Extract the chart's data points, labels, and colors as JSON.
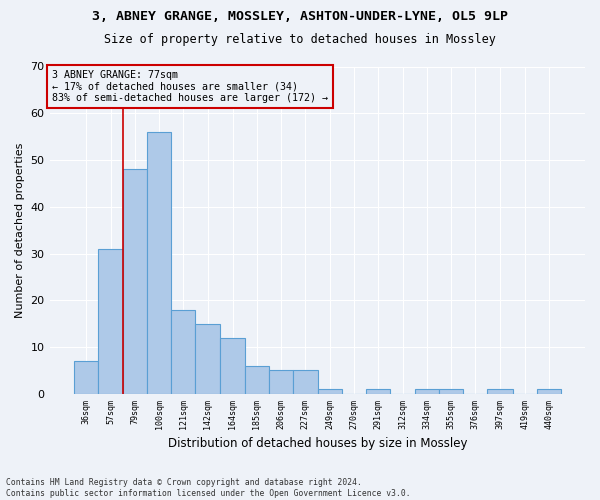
{
  "title_line1": "3, ABNEY GRANGE, MOSSLEY, ASHTON-UNDER-LYNE, OL5 9LP",
  "title_line2": "Size of property relative to detached houses in Mossley",
  "xlabel": "Distribution of detached houses by size in Mossley",
  "ylabel": "Number of detached properties",
  "footer_line1": "Contains HM Land Registry data © Crown copyright and database right 2024.",
  "footer_line2": "Contains public sector information licensed under the Open Government Licence v3.0.",
  "annotation_line1": "3 ABNEY GRANGE: 77sqm",
  "annotation_line2": "← 17% of detached houses are smaller (34)",
  "annotation_line3": "83% of semi-detached houses are larger (172) →",
  "property_line_x": 79,
  "bar_edges": [
    36,
    57,
    79,
    100,
    121,
    142,
    164,
    185,
    206,
    227,
    249,
    270,
    291,
    312,
    334,
    355,
    376,
    397,
    419,
    440,
    461
  ],
  "bar_heights": [
    7,
    31,
    48,
    56,
    18,
    15,
    12,
    6,
    5,
    5,
    1,
    0,
    1,
    0,
    1,
    1,
    0,
    1,
    0,
    1
  ],
  "bar_color": "#aec9e8",
  "bar_edge_color": "#5a9fd4",
  "property_line_color": "#cc0000",
  "annotation_box_edge_color": "#cc0000",
  "background_color": "#eef2f8",
  "ylim": [
    0,
    70
  ],
  "yticks": [
    0,
    10,
    20,
    30,
    40,
    50,
    60,
    70
  ]
}
